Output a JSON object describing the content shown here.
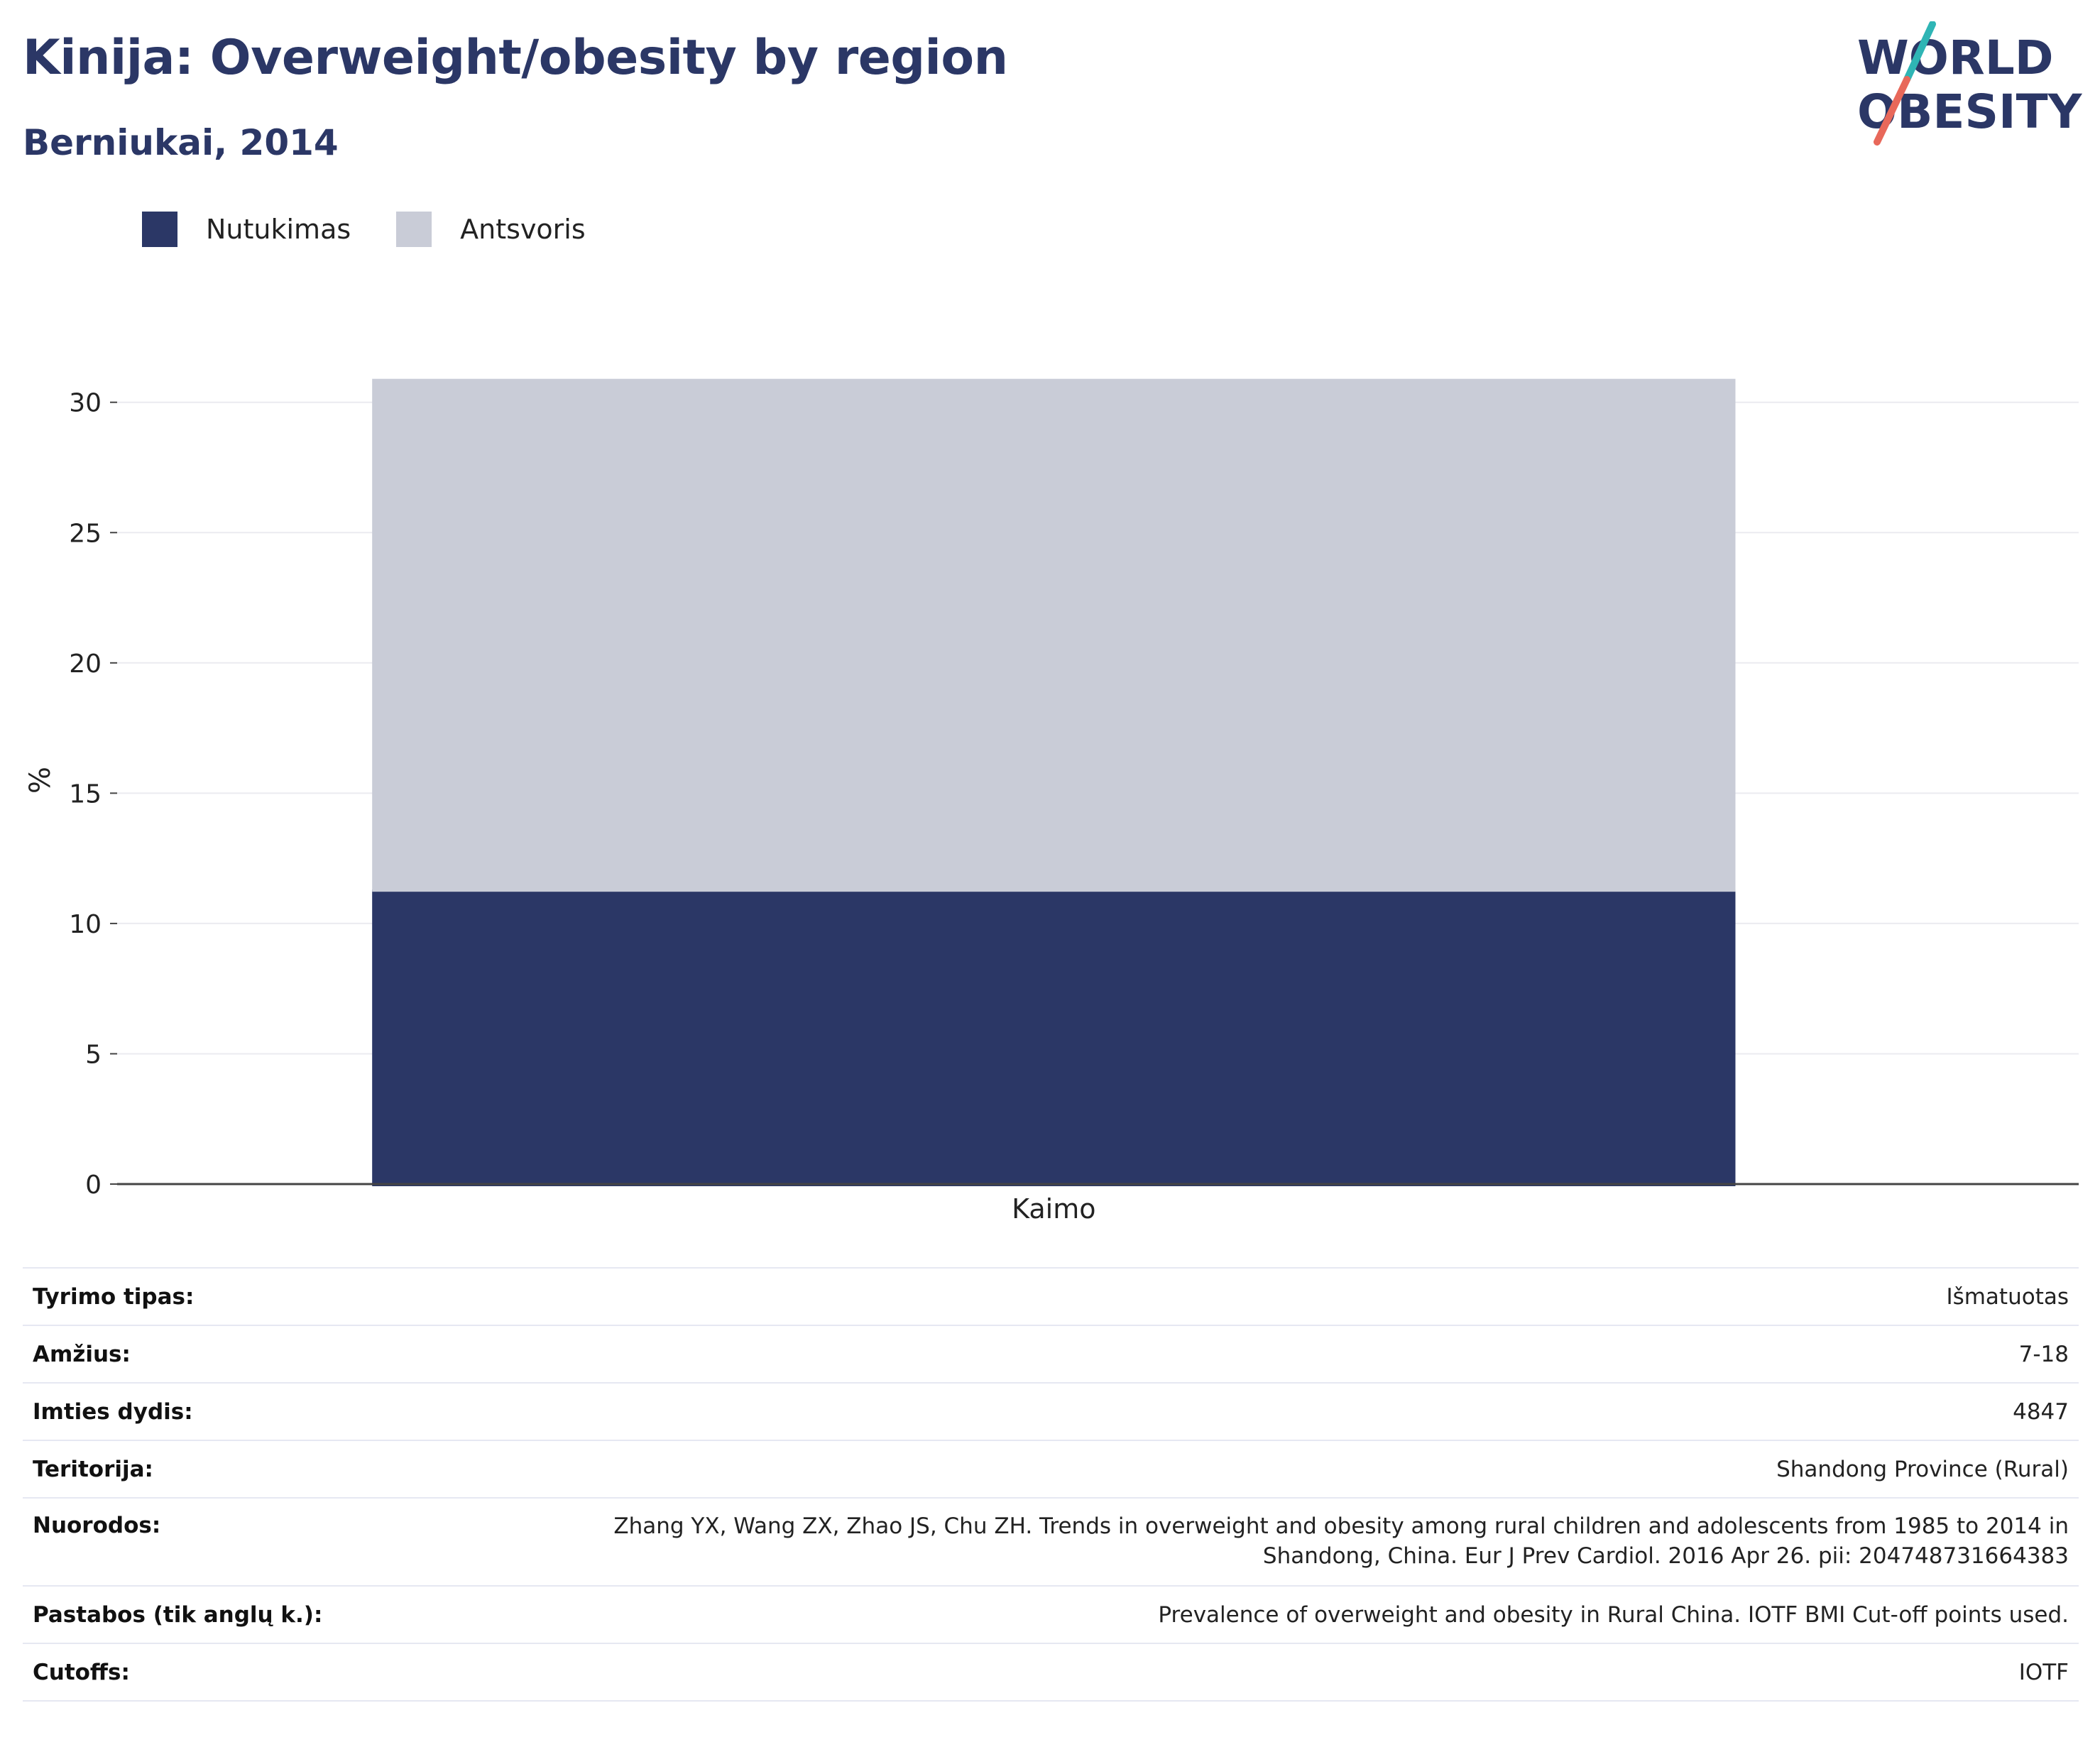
{
  "header": {
    "title": "Kinija: Overweight/obesity by region",
    "subtitle": "Berniukai, 2014"
  },
  "logo": {
    "line1": "WORLD",
    "line2": "OBESITY"
  },
  "colors": {
    "obesity": "#2b3766",
    "overweight": "#c9ccd7",
    "accent_teal": "#2fb5b5",
    "accent_red": "#e8685a"
  },
  "legend": [
    {
      "label": "Nutukimas",
      "color": "#2b3766"
    },
    {
      "label": "Antsvoris",
      "color": "#c9ccd7"
    }
  ],
  "chart_data": {
    "type": "bar",
    "stacked": true,
    "categories": [
      "Kaimo"
    ],
    "series": [
      {
        "name": "Nutukimas",
        "values": [
          11.3
        ]
      },
      {
        "name": "Antsvoris",
        "values": [
          19.6
        ]
      }
    ],
    "ylabel": "%",
    "ylim": [
      0,
      31
    ],
    "yticks": [
      0,
      5,
      10,
      15,
      20,
      25,
      30
    ],
    "grid": true,
    "legend_position": "top-left"
  },
  "meta": [
    {
      "key": "Tyrimo tipas:",
      "value": "Išmatuotas"
    },
    {
      "key": "Amžius:",
      "value": "7-18"
    },
    {
      "key": "Imties dydis:",
      "value": "4847"
    },
    {
      "key": "Teritorija:",
      "value": "Shandong Province (Rural)"
    },
    {
      "key": "Nuorodos:",
      "value_line1": "Zhang YX, Wang ZX, Zhao JS, Chu ZH. Trends in overweight and obesity among rural children and adolescents from 1985 to 2014 in",
      "value_line2": "Shandong, China. Eur J Prev Cardiol. 2016 Apr 26. pii: 204748731664383"
    },
    {
      "key": "Pastabos (tik anglų k.):",
      "value": "Prevalence of overweight and obesity in Rural China. IOTF BMI Cut-off points used."
    },
    {
      "key": "Cutoffs:",
      "value": "IOTF"
    }
  ]
}
